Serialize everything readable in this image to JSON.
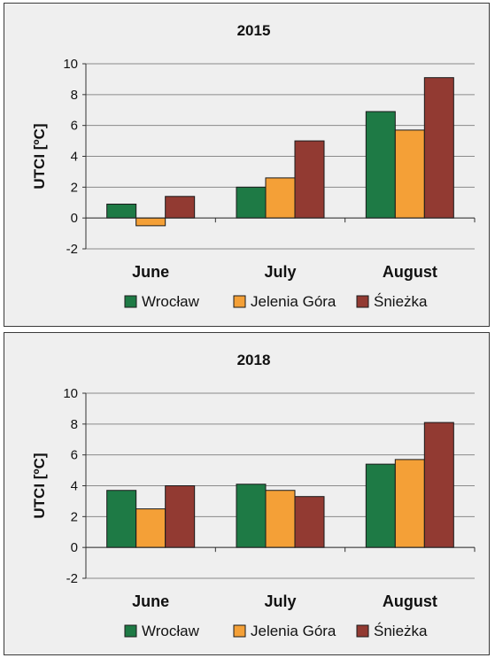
{
  "chart_data": [
    {
      "type": "bar",
      "title": "2015",
      "ylabel": "UTCI [ºC]",
      "xlabel": "",
      "ylim": [
        -2,
        10
      ],
      "yticks": [
        -2,
        0,
        2,
        4,
        6,
        8,
        10
      ],
      "categories": [
        "June",
        "July",
        "August"
      ],
      "grid": true,
      "legend_position": "bottom",
      "series": [
        {
          "name": "Wrocław",
          "color": "#1e7a45",
          "values": [
            0.9,
            2.0,
            6.9
          ]
        },
        {
          "name": "Jelenia Góra",
          "color": "#f4a037",
          "values": [
            -0.5,
            2.6,
            5.7
          ]
        },
        {
          "name": "Śnieżka",
          "color": "#923a32",
          "values": [
            1.4,
            5.0,
            9.1
          ]
        }
      ]
    },
    {
      "type": "bar",
      "title": "2018",
      "ylabel": "UTCI [ºC]",
      "xlabel": "",
      "ylim": [
        -2,
        10
      ],
      "yticks": [
        -2,
        0,
        2,
        4,
        6,
        8,
        10
      ],
      "categories": [
        "June",
        "July",
        "August"
      ],
      "grid": true,
      "legend_position": "bottom",
      "series": [
        {
          "name": "Wrocław",
          "color": "#1e7a45",
          "values": [
            3.7,
            4.1,
            5.4
          ]
        },
        {
          "name": "Jelenia Góra",
          "color": "#f4a037",
          "values": [
            2.5,
            3.7,
            5.7
          ]
        },
        {
          "name": "Śnieżka",
          "color": "#923a32",
          "values": [
            4.0,
            3.3,
            8.1
          ]
        }
      ]
    }
  ]
}
